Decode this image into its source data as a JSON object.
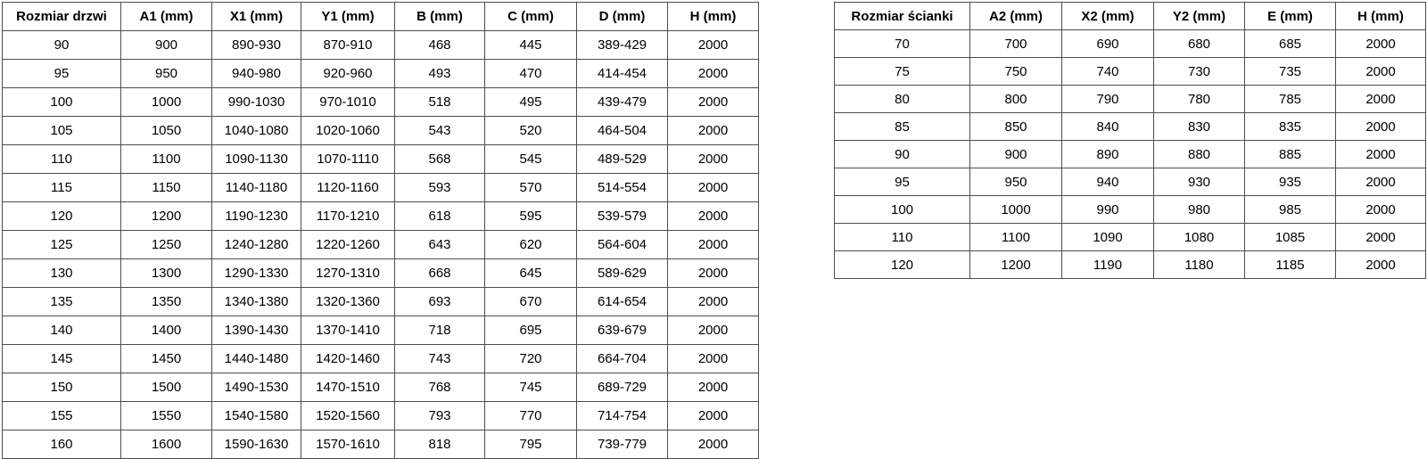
{
  "door_table": {
    "name": "door-size-table",
    "headers": [
      "Rozmiar drzwi",
      "A1 (mm)",
      "X1 (mm)",
      "Y1 (mm)",
      "B (mm)",
      "C (mm)",
      "D (mm)",
      "H (mm)"
    ],
    "rows": [
      [
        "90",
        "900",
        "890-930",
        "870-910",
        "468",
        "445",
        "389-429",
        "2000"
      ],
      [
        "95",
        "950",
        "940-980",
        "920-960",
        "493",
        "470",
        "414-454",
        "2000"
      ],
      [
        "100",
        "1000",
        "990-1030",
        "970-1010",
        "518",
        "495",
        "439-479",
        "2000"
      ],
      [
        "105",
        "1050",
        "1040-1080",
        "1020-1060",
        "543",
        "520",
        "464-504",
        "2000"
      ],
      [
        "110",
        "1100",
        "1090-1130",
        "1070-1110",
        "568",
        "545",
        "489-529",
        "2000"
      ],
      [
        "115",
        "1150",
        "1140-1180",
        "1120-1160",
        "593",
        "570",
        "514-554",
        "2000"
      ],
      [
        "120",
        "1200",
        "1190-1230",
        "1170-1210",
        "618",
        "595",
        "539-579",
        "2000"
      ],
      [
        "125",
        "1250",
        "1240-1280",
        "1220-1260",
        "643",
        "620",
        "564-604",
        "2000"
      ],
      [
        "130",
        "1300",
        "1290-1330",
        "1270-1310",
        "668",
        "645",
        "589-629",
        "2000"
      ],
      [
        "135",
        "1350",
        "1340-1380",
        "1320-1360",
        "693",
        "670",
        "614-654",
        "2000"
      ],
      [
        "140",
        "1400",
        "1390-1430",
        "1370-1410",
        "718",
        "695",
        "639-679",
        "2000"
      ],
      [
        "145",
        "1450",
        "1440-1480",
        "1420-1460",
        "743",
        "720",
        "664-704",
        "2000"
      ],
      [
        "150",
        "1500",
        "1490-1530",
        "1470-1510",
        "768",
        "745",
        "689-729",
        "2000"
      ],
      [
        "155",
        "1550",
        "1540-1580",
        "1520-1560",
        "793",
        "770",
        "714-754",
        "2000"
      ],
      [
        "160",
        "1600",
        "1590-1630",
        "1570-1610",
        "818",
        "795",
        "739-779",
        "2000"
      ]
    ]
  },
  "wall_table": {
    "name": "wall-size-table",
    "headers": [
      "Rozmiar ścianki",
      "A2 (mm)",
      "X2 (mm)",
      "Y2 (mm)",
      "E (mm)",
      "H (mm)"
    ],
    "rows": [
      [
        "70",
        "700",
        "690",
        "680",
        "685",
        "2000"
      ],
      [
        "75",
        "750",
        "740",
        "730",
        "735",
        "2000"
      ],
      [
        "80",
        "800",
        "790",
        "780",
        "785",
        "2000"
      ],
      [
        "85",
        "850",
        "840",
        "830",
        "835",
        "2000"
      ],
      [
        "90",
        "900",
        "890",
        "880",
        "885",
        "2000"
      ],
      [
        "95",
        "950",
        "940",
        "930",
        "935",
        "2000"
      ],
      [
        "100",
        "1000",
        "990",
        "980",
        "985",
        "2000"
      ],
      [
        "110",
        "1100",
        "1090",
        "1080",
        "1085",
        "2000"
      ],
      [
        "120",
        "1200",
        "1190",
        "1180",
        "1185",
        "2000"
      ]
    ]
  },
  "colors": {
    "border": "#4d4d4d",
    "text": "#000000",
    "background": "#ffffff"
  }
}
